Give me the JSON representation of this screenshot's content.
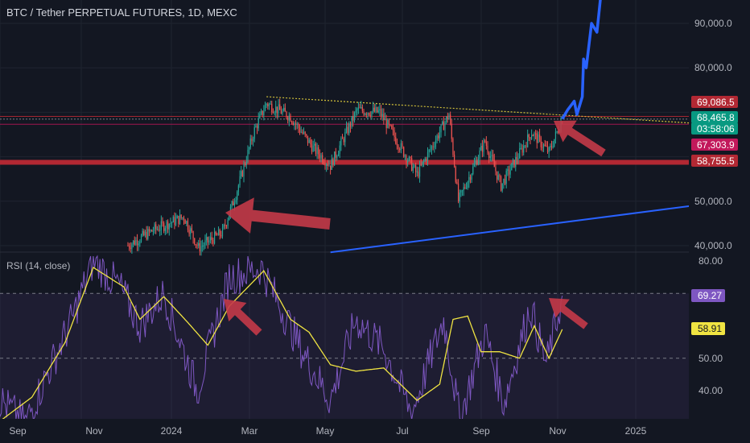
{
  "header": {
    "title": "BTC / Tether PERPETUAL FUTURES, 1D, MEXC",
    "rsi_label": "RSI (14, close)"
  },
  "colors": {
    "background": "#131722",
    "up_candle": "#26a69a",
    "down_candle": "#ef5350",
    "rsi_line": "#7e57c2",
    "rsi_ma": "#f0e442",
    "projection": "#2962ff",
    "support_line": "#b22833",
    "trendline_top": "#d4c33a",
    "arrow": "#c43a48"
  },
  "chart_data": [
    {
      "type": "candlestick",
      "title": "BTC / Tether PERPETUAL FUTURES, 1D, MEXC",
      "x_ticks": [
        "Sep",
        "Nov",
        "2024",
        "Mar",
        "May",
        "Jul",
        "Sep",
        "Nov",
        "2025"
      ],
      "y_ticks": [
        "40,000.0",
        "50,000.0",
        "80,000.0",
        "90,000.0"
      ],
      "ylim": [
        38000,
        98000
      ],
      "price_labels": [
        {
          "text": "69,086.5",
          "value": 69086.5,
          "color": "#b22833"
        },
        {
          "text": "68,465.8",
          "value": 68465.8,
          "color": "#089981"
        },
        {
          "text": "03:58:06",
          "value": 68465.8,
          "color": "#089981"
        },
        {
          "text": "67,303.9",
          "value": 67303.9,
          "color": "#c2185b"
        },
        {
          "text": "58,755.5",
          "value": 58755.5,
          "color": "#b22833"
        }
      ],
      "horizontal_levels": [
        69086.5,
        68465.8,
        67303.9,
        58755.5
      ],
      "anchor_prices": [
        {
          "date": "2023-12-01",
          "price": 40000
        },
        {
          "date": "2023-12-20",
          "price": 43500
        },
        {
          "date": "2024-01-12",
          "price": 46500
        },
        {
          "date": "2024-01-23",
          "price": 39500
        },
        {
          "date": "2024-02-10",
          "price": 43000
        },
        {
          "date": "2024-02-20",
          "price": 51500
        },
        {
          "date": "2024-03-05",
          "price": 66000
        },
        {
          "date": "2024-03-14",
          "price": 72000
        },
        {
          "date": "2024-04-01",
          "price": 69000
        },
        {
          "date": "2024-04-18",
          "price": 62000
        },
        {
          "date": "2024-05-01",
          "price": 58000
        },
        {
          "date": "2024-05-21",
          "price": 70500
        },
        {
          "date": "2024-06-07",
          "price": 70000
        },
        {
          "date": "2024-06-25",
          "price": 61000
        },
        {
          "date": "2024-07-05",
          "price": 56000
        },
        {
          "date": "2024-07-29",
          "price": 69500
        },
        {
          "date": "2024-08-05",
          "price": 50000
        },
        {
          "date": "2024-08-25",
          "price": 63500
        },
        {
          "date": "2024-09-06",
          "price": 53500
        },
        {
          "date": "2024-09-29",
          "price": 65500
        },
        {
          "date": "2024-10-12",
          "price": 61000
        },
        {
          "date": "2024-10-22",
          "price": 68500
        }
      ],
      "projection": [
        {
          "date": "2024-10-22",
          "price": 68500
        },
        {
          "date": "2024-10-26",
          "price": 70500
        },
        {
          "date": "2024-10-31",
          "price": 72500
        },
        {
          "date": "2024-11-02",
          "price": 69500
        },
        {
          "date": "2024-11-06",
          "price": 73500
        },
        {
          "date": "2024-11-07",
          "price": 82000
        },
        {
          "date": "2024-11-09",
          "price": 80000
        },
        {
          "date": "2024-11-13",
          "price": 90000
        },
        {
          "date": "2024-11-17",
          "price": 88000
        },
        {
          "date": "2024-11-20",
          "price": 96500
        }
      ],
      "trendline": [
        {
          "date": "2024-03-14",
          "price": 73500
        },
        {
          "date": "2025-01-31",
          "price": 67500
        }
      ],
      "support_trendline": [
        {
          "date": "2024-05-01",
          "price": 38500
        },
        {
          "date": "2025-02-10",
          "price": 49500
        }
      ]
    },
    {
      "type": "line",
      "title": "RSI (14, close)",
      "y_ticks": [
        "80.00",
        "50.00",
        "40.00"
      ],
      "ylim": [
        31,
        82
      ],
      "levels": [
        70,
        50
      ],
      "value_labels": [
        {
          "text": "69.27",
          "value": 69.27,
          "color": "#7e57c2"
        },
        {
          "text": "58.91",
          "value": 58.91,
          "color": "#f0e442"
        }
      ],
      "series": [
        {
          "values_anchor": [
            {
              "date": "2023-08-25",
              "value": 38
            },
            {
              "date": "2023-09-15",
              "value": 30
            },
            {
              "date": "2023-10-20",
              "value": 62
            },
            {
              "date": "2023-11-05",
              "value": 80
            },
            {
              "date": "2023-11-25",
              "value": 72
            },
            {
              "date": "2023-12-10",
              "value": 60
            },
            {
              "date": "2023-12-28",
              "value": 70
            },
            {
              "date": "2024-01-22",
              "value": 40
            },
            {
              "date": "2024-02-15",
              "value": 75
            },
            {
              "date": "2024-03-10",
              "value": 78
            },
            {
              "date": "2024-04-10",
              "value": 52
            },
            {
              "date": "2024-05-01",
              "value": 37
            },
            {
              "date": "2024-05-20",
              "value": 62
            },
            {
              "date": "2024-06-10",
              "value": 53
            },
            {
              "date": "2024-07-01",
              "value": 33
            },
            {
              "date": "2024-07-25",
              "value": 62
            },
            {
              "date": "2024-08-06",
              "value": 31
            },
            {
              "date": "2024-08-25",
              "value": 58
            },
            {
              "date": "2024-09-08",
              "value": 36
            },
            {
              "date": "2024-09-28",
              "value": 66
            },
            {
              "date": "2024-10-10",
              "value": 48
            },
            {
              "date": "2024-10-22",
              "value": 69.27
            }
          ]
        },
        {
          "values_anchor": [
            {
              "date": "2023-08-25",
              "value": 30
            },
            {
              "date": "2023-09-20",
              "value": 38
            },
            {
              "date": "2023-10-15",
              "value": 55
            },
            {
              "date": "2023-11-05",
              "value": 78
            },
            {
              "date": "2023-11-28",
              "value": 72
            },
            {
              "date": "2023-12-10",
              "value": 62
            },
            {
              "date": "2023-12-28",
              "value": 69
            },
            {
              "date": "2024-01-15",
              "value": 61
            },
            {
              "date": "2024-01-30",
              "value": 54
            },
            {
              "date": "2024-02-15",
              "value": 66
            },
            {
              "date": "2024-03-12",
              "value": 77
            },
            {
              "date": "2024-04-01",
              "value": 62
            },
            {
              "date": "2024-04-15",
              "value": 58
            },
            {
              "date": "2024-05-01",
              "value": 48
            },
            {
              "date": "2024-05-20",
              "value": 46
            },
            {
              "date": "2024-06-10",
              "value": 47
            },
            {
              "date": "2024-07-05",
              "value": 37
            },
            {
              "date": "2024-07-22",
              "value": 42
            },
            {
              "date": "2024-08-01",
              "value": 62
            },
            {
              "date": "2024-08-12",
              "value": 63
            },
            {
              "date": "2024-08-22",
              "value": 52
            },
            {
              "date": "2024-09-05",
              "value": 52
            },
            {
              "date": "2024-09-20",
              "value": 50
            },
            {
              "date": "2024-10-01",
              "value": 60
            },
            {
              "date": "2024-10-12",
              "value": 50
            },
            {
              "date": "2024-10-22",
              "value": 58.91
            }
          ]
        }
      ]
    }
  ]
}
